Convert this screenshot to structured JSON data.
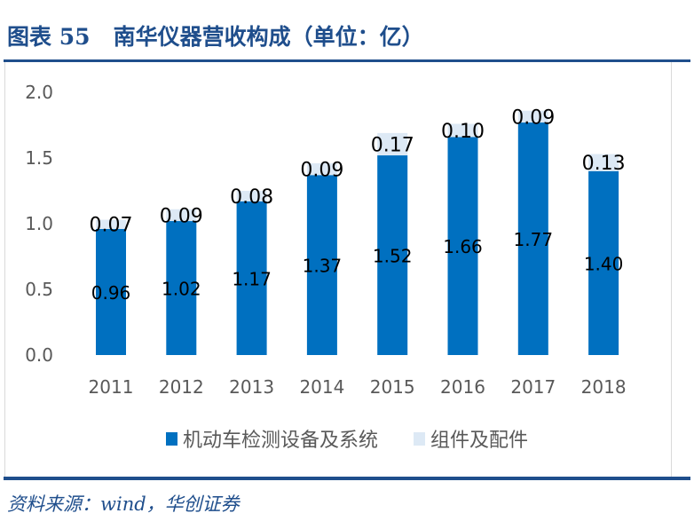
{
  "title": "图表 55   南华仪器营收构成（单位：亿）",
  "source": "资料来源：wind，华创证券",
  "colors": {
    "series1": "#0070c0",
    "series2": "#dde9f5",
    "axis_text": "#595959",
    "brand": "#1f4e8c"
  },
  "chart_data": {
    "type": "bar",
    "stacked": true,
    "title": "南华仪器营收构成（单位：亿）",
    "categories": [
      "2011",
      "2012",
      "2013",
      "2014",
      "2015",
      "2016",
      "2017",
      "2018"
    ],
    "series": [
      {
        "name": "机动车检测设备及系统",
        "values": [
          0.96,
          1.02,
          1.17,
          1.37,
          1.52,
          1.66,
          1.77,
          1.4
        ],
        "labels": [
          "0.96",
          "1.02",
          "1.17",
          "1.37",
          "1.52",
          "1.66",
          "1.77",
          "1.40"
        ]
      },
      {
        "name": "组件及配件",
        "values": [
          0.07,
          0.09,
          0.08,
          0.09,
          0.17,
          0.1,
          0.09,
          0.13
        ],
        "labels": [
          "0.07",
          "0.09",
          "0.08",
          "0.09",
          "0.17",
          "0.10",
          "0.09",
          "0.13"
        ]
      }
    ],
    "yticks": [
      "0.0",
      "0.5",
      "1.0",
      "1.5",
      "2.0"
    ],
    "ylim": [
      0,
      2.0
    ],
    "legend": "bottom",
    "grid": false
  }
}
